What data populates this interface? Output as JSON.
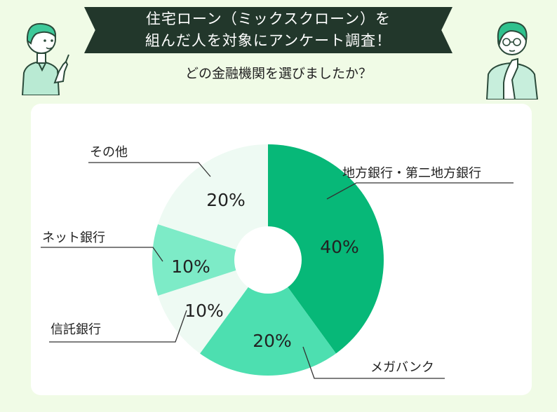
{
  "header": {
    "title_line1": "住宅ローン（ミックスクローン）を",
    "title_line2": "組んだ人を対象にアンケート調査！",
    "subtitle": "どの金融機関を選びましたか？"
  },
  "colors": {
    "background": "#f0fbe6",
    "banner": "#22372b",
    "slice_colors": [
      "#07b878",
      "#4ddfb0",
      "#eefaf3",
      "#7debc7",
      "#eefaf3"
    ]
  },
  "chart_data": {
    "type": "pie",
    "title": "どの金融機関を選びましたか？",
    "donut": true,
    "categories": [
      "地方銀行・第二地方銀行",
      "メガバンク",
      "信託銀行",
      "ネット銀行",
      "その他"
    ],
    "values": [
      40,
      20,
      10,
      10,
      20
    ],
    "value_labels": [
      "40%",
      "20%",
      "10%",
      "10%",
      "20%"
    ],
    "unit": "%"
  }
}
